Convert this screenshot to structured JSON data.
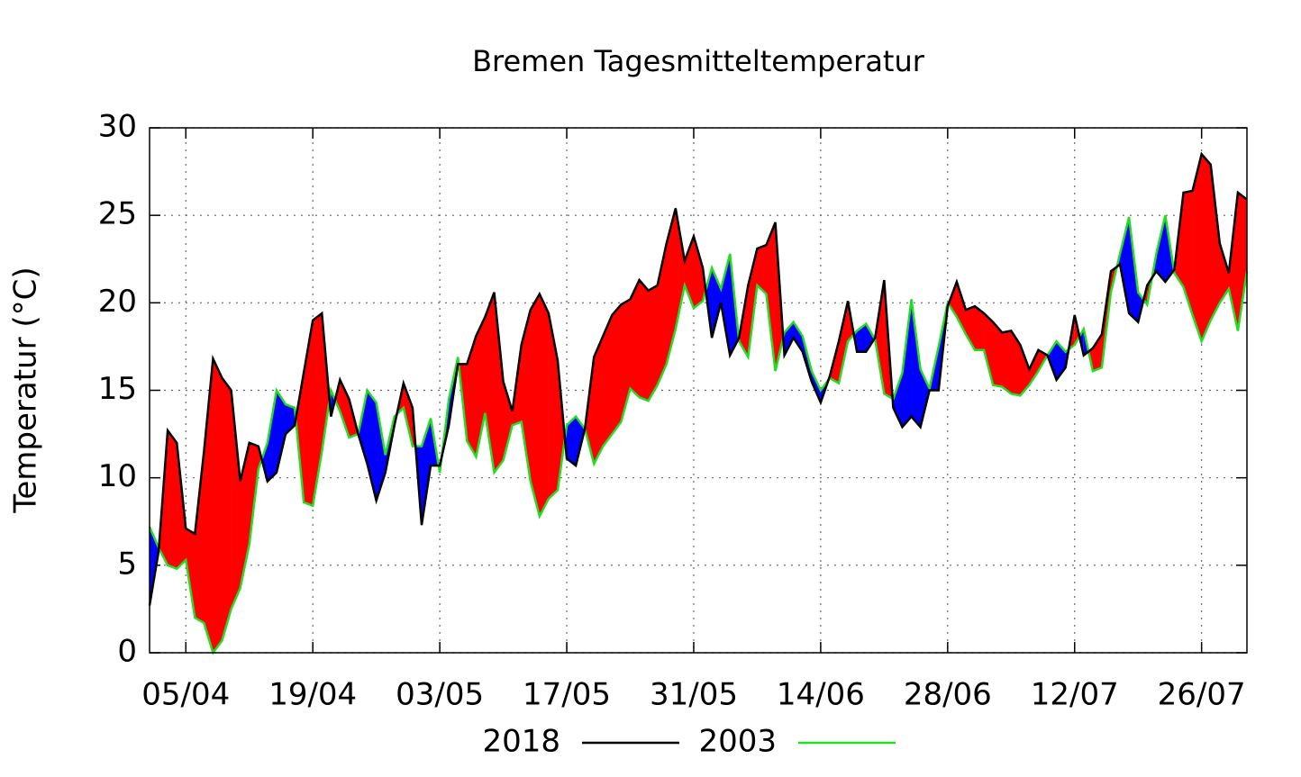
{
  "chart_data": {
    "type": "line",
    "title": "Bremen Tagesmitteltemperatur",
    "y_label": "Temperatur (°C)",
    "categories": [
      "01/04",
      "02/04",
      "03/04",
      "04/04",
      "05/04",
      "06/04",
      "07/04",
      "08/04",
      "09/04",
      "10/04",
      "11/04",
      "12/04",
      "13/04",
      "14/04",
      "15/04",
      "16/04",
      "17/04",
      "18/04",
      "19/04",
      "20/04",
      "21/04",
      "22/04",
      "23/04",
      "24/04",
      "25/04",
      "26/04",
      "27/04",
      "28/04",
      "29/04",
      "30/04",
      "01/05",
      "02/05",
      "03/05",
      "04/05",
      "05/05",
      "06/05",
      "07/05",
      "08/05",
      "09/05",
      "10/05",
      "11/05",
      "12/05",
      "13/05",
      "14/05",
      "15/05",
      "16/05",
      "17/05",
      "18/05",
      "19/05",
      "20/05",
      "21/05",
      "22/05",
      "23/05",
      "24/05",
      "25/05",
      "26/05",
      "27/05",
      "28/05",
      "29/05",
      "30/05",
      "31/05",
      "01/06",
      "02/06",
      "03/06",
      "04/06",
      "05/06",
      "06/06",
      "07/06",
      "08/06",
      "09/06",
      "10/06",
      "11/06",
      "12/06",
      "13/06",
      "14/06",
      "15/06",
      "16/06",
      "17/06",
      "18/06",
      "19/06",
      "20/06",
      "21/06",
      "22/06",
      "23/06",
      "24/06",
      "25/06",
      "26/06",
      "27/06",
      "28/06",
      "29/06",
      "30/06",
      "01/07",
      "02/07",
      "03/07",
      "04/07",
      "05/07",
      "06/07",
      "07/07",
      "08/07",
      "09/07",
      "10/07",
      "11/07",
      "12/07",
      "13/07",
      "14/07",
      "15/07",
      "16/07",
      "17/07",
      "18/07",
      "19/07",
      "20/07",
      "21/07",
      "22/07",
      "23/07",
      "24/07",
      "25/07",
      "26/07",
      "27/07",
      "28/07",
      "29/07",
      "30/07",
      "31/07"
    ],
    "series": [
      {
        "name": "2018",
        "color": "#000000",
        "values": [
          2.7,
          5.8,
          12.7,
          12.0,
          7.1,
          6.8,
          11.5,
          16.8,
          15.7,
          15.0,
          9.8,
          12.0,
          11.8,
          9.8,
          10.3,
          12.5,
          13.0,
          16.0,
          19.0,
          19.4,
          13.5,
          15.6,
          14.5,
          12.5,
          10.8,
          8.7,
          10.3,
          13.0,
          15.4,
          14.0,
          7.3,
          10.7,
          10.7,
          13.0,
          16.5,
          16.5,
          18.1,
          19.2,
          20.6,
          15.5,
          13.8,
          17.6,
          19.6,
          20.5,
          19.4,
          16.7,
          11.1,
          10.7,
          12.8,
          16.9,
          18.1,
          19.3,
          19.9,
          20.2,
          21.3,
          20.7,
          21.0,
          23.4,
          25.4,
          22.4,
          23.8,
          22.0,
          18.0,
          20.0,
          17.0,
          18.0,
          21.0,
          23.1,
          23.3,
          24.6,
          17.0,
          18.0,
          17.2,
          15.5,
          14.3,
          15.8,
          17.8,
          20.1,
          17.2,
          17.2,
          18.0,
          21.3,
          14.0,
          12.9,
          13.5,
          12.9,
          15.0,
          15.0,
          19.8,
          21.2,
          19.6,
          19.8,
          19.4,
          18.9,
          18.3,
          18.4,
          17.6,
          16.2,
          17.3,
          17.0,
          15.6,
          16.3,
          19.3,
          17.0,
          17.4,
          18.2,
          21.8,
          22.2,
          19.4,
          18.9,
          21.0,
          21.8,
          21.2,
          21.9,
          26.3,
          26.4,
          28.5,
          27.9,
          23.4,
          21.7,
          26.3,
          25.9
        ]
      },
      {
        "name": "2003",
        "color": "#22dd22",
        "values": [
          7.2,
          6.0,
          5.0,
          4.8,
          5.3,
          2.0,
          1.7,
          0.0,
          0.7,
          2.5,
          3.7,
          6.2,
          10.5,
          12.0,
          15.0,
          14.2,
          14.0,
          8.6,
          8.4,
          11.5,
          15.0,
          13.8,
          12.3,
          12.5,
          15.0,
          14.3,
          11.3,
          13.5,
          14.0,
          11.8,
          11.8,
          13.4,
          10.3,
          14.5,
          16.9,
          12.1,
          11.2,
          13.7,
          10.3,
          11.0,
          13.0,
          13.2,
          9.8,
          7.8,
          8.8,
          9.3,
          13.0,
          13.5,
          12.8,
          10.8,
          11.8,
          12.5,
          13.2,
          15.1,
          14.6,
          14.4,
          15.3,
          16.5,
          18.5,
          21.0,
          19.7,
          20.1,
          22.0,
          20.8,
          22.8,
          17.8,
          16.9,
          21.0,
          20.5,
          16.1,
          18.3,
          18.9,
          18.1,
          16.1,
          15.0,
          15.7,
          15.4,
          17.8,
          18.4,
          18.8,
          17.9,
          14.8,
          14.5,
          16.0,
          20.2,
          16.2,
          15.1,
          17.5,
          20.0,
          19.2,
          18.2,
          17.3,
          17.3,
          15.3,
          15.2,
          14.8,
          14.7,
          15.3,
          16.1,
          17.0,
          17.8,
          17.2,
          17.6,
          18.5,
          16.1,
          16.3,
          20.6,
          22.8,
          24.9,
          20.6,
          19.9,
          22.8,
          25.0,
          21.7,
          20.9,
          19.3,
          17.8,
          19.0,
          20.0,
          20.8,
          18.4,
          21.8
        ]
      }
    ],
    "fill_colors": {
      "above": "#ff0000",
      "below": "#0000ff"
    },
    "xticks": [
      "05/04",
      "19/04",
      "03/05",
      "17/05",
      "31/05",
      "14/06",
      "28/06",
      "12/07",
      "26/07"
    ],
    "ylim": [
      0,
      30
    ],
    "yticks": [
      0,
      5,
      10,
      15,
      20,
      25,
      30
    ],
    "grid": true,
    "legend": "bottom"
  }
}
